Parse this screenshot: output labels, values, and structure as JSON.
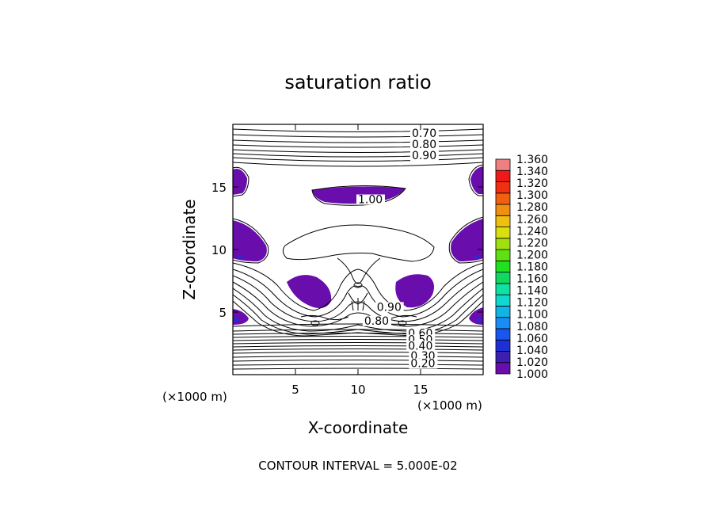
{
  "chart_data": {
    "type": "contour",
    "title": "saturation ratio",
    "xlabel": "X-coordinate",
    "ylabel": "Z-coordinate",
    "x_unit": "(×1000 m)",
    "y_unit": "(×1000 m)",
    "xlim": [
      0,
      20
    ],
    "ylim": [
      0,
      20
    ],
    "x_ticks": [
      5,
      10,
      15
    ],
    "y_ticks": [
      5,
      10,
      15
    ],
    "contour_labels": [
      {
        "value": "0.70",
        "x": 14.3,
        "z": 19.0
      },
      {
        "value": "0.80",
        "x": 14.3,
        "z": 18.1
      },
      {
        "value": "0.90",
        "x": 14.3,
        "z": 17.2
      },
      {
        "value": "1.00",
        "x": 10.0,
        "z": 13.7
      },
      {
        "value": "0.90",
        "x": 11.5,
        "z": 5.1
      },
      {
        "value": "0.80",
        "x": 10.5,
        "z": 4.0
      },
      {
        "value": "0.60",
        "x": 14.0,
        "z": 3.0
      },
      {
        "value": "0.50",
        "x": 14.0,
        "z": 2.5
      },
      {
        "value": "0.40",
        "x": 14.0,
        "z": 2.0
      },
      {
        "value": "0.30",
        "x": 14.2,
        "z": 1.2
      },
      {
        "value": "0.20",
        "x": 14.2,
        "z": 0.6
      }
    ],
    "contour_interval_text": "CONTOUR INTERVAL = 5.000E-02",
    "colorbar": {
      "labels": [
        "1.000",
        "1.020",
        "1.040",
        "1.060",
        "1.080",
        "1.100",
        "1.120",
        "1.140",
        "1.160",
        "1.180",
        "1.200",
        "1.220",
        "1.240",
        "1.260",
        "1.280",
        "1.300",
        "1.320",
        "1.340",
        "1.360"
      ],
      "colors": [
        "#6a0dad",
        "#3a1fb0",
        "#1f2fd8",
        "#1a55f0",
        "#1a8cf5",
        "#10b5e8",
        "#10d8d0",
        "#10e0a0",
        "#10d860",
        "#20e020",
        "#60e010",
        "#a0e010",
        "#d8e010",
        "#f0c010",
        "#f09010",
        "#f06010",
        "#f03010",
        "#f01818",
        "#f08080"
      ]
    },
    "supersaturated_color": "#6a0dad"
  }
}
